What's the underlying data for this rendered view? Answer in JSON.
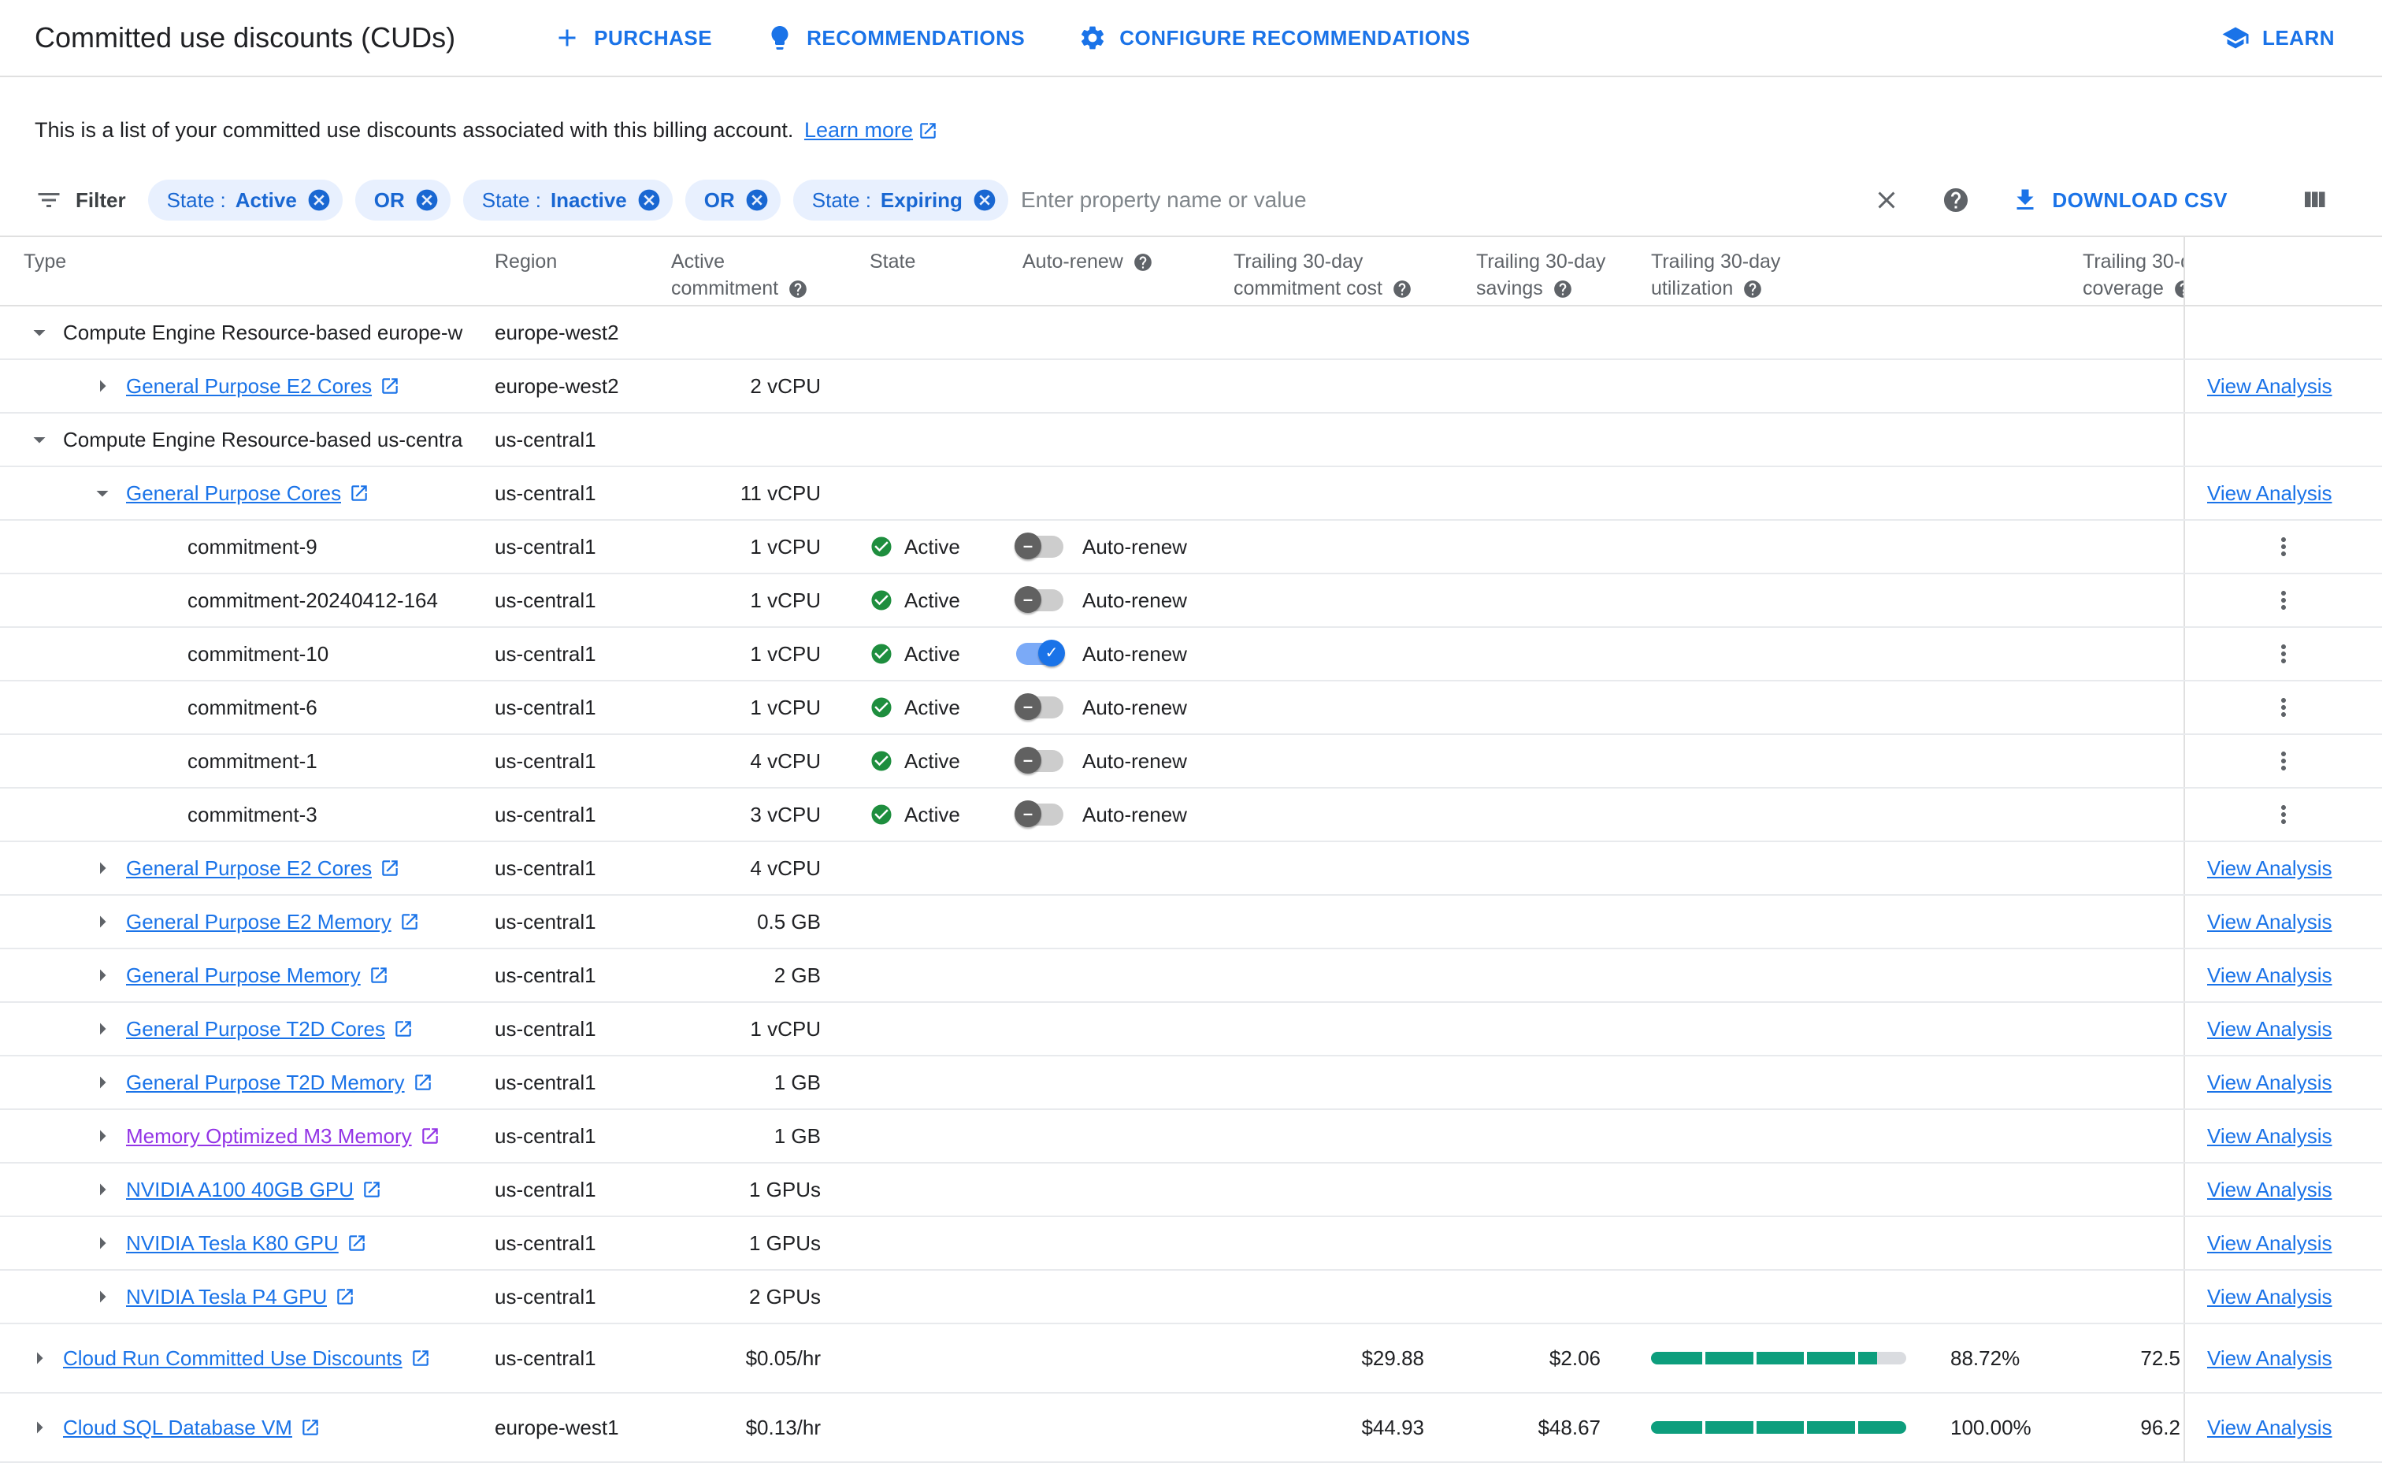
{
  "header": {
    "title": "Committed use discounts (CUDs)",
    "actions": [
      {
        "label": "PURCHASE",
        "icon": "plus-icon"
      },
      {
        "label": "RECOMMENDATIONS",
        "icon": "lightbulb-icon"
      },
      {
        "label": "CONFIGURE RECOMMENDATIONS",
        "icon": "gear-icon"
      }
    ],
    "learn": {
      "label": "LEARN",
      "icon": "learn-icon"
    }
  },
  "description": {
    "text": "This is a list of your committed use discounts associated with this billing account.",
    "link_label": "Learn more"
  },
  "filter_bar": {
    "label": "Filter",
    "chips": [
      {
        "field": "State :",
        "value": "Active"
      },
      {
        "value": "OR"
      },
      {
        "field": "State :",
        "value": "Inactive"
      },
      {
        "value": "OR"
      },
      {
        "field": "State :",
        "value": "Expiring"
      }
    ],
    "input_placeholder": "Enter property name or value",
    "download_label": "DOWNLOAD CSV",
    "icons": [
      "filter-icon",
      "close-icon",
      "help-icon",
      "download-icon",
      "columns-icon"
    ]
  },
  "table": {
    "columns": {
      "type": "Type",
      "region": "Region",
      "active_commitment_l1": "Active",
      "active_commitment_l2": "commitment",
      "state": "State",
      "auto_renew": "Auto-renew",
      "cost_l1": "Trailing 30-day",
      "cost_l2": "commitment cost",
      "savings_l1": "Trailing 30-day",
      "savings_l2": "savings",
      "utilization_l1": "Trailing 30-day",
      "utilization_l2": "utilization",
      "coverage_l1": "Trailing 30-d",
      "coverage_l2": "coverage"
    },
    "auto_renew_label": "Auto-renew",
    "view_analysis_label": "View Analysis",
    "rows": [
      {
        "level": 0,
        "caret": "down",
        "type": "Compute Engine Resource-based europe-w",
        "region": "europe-west2"
      },
      {
        "level": 1,
        "caret": "right",
        "type": "General Purpose E2 Cores",
        "link": true,
        "region": "europe-west2",
        "commitment": "2 vCPU",
        "action": "view"
      },
      {
        "level": 0,
        "caret": "down",
        "type": "Compute Engine Resource-based us-centra",
        "region": "us-central1"
      },
      {
        "level": 1,
        "caret": "down",
        "type": "General Purpose Cores",
        "link": true,
        "region": "us-central1",
        "commitment": "11 vCPU",
        "action": "view"
      },
      {
        "level": 2,
        "type": "commitment-9",
        "region": "us-central1",
        "commitment": "1 vCPU",
        "state": "Active",
        "auto_renew": false,
        "action": "kebab"
      },
      {
        "level": 2,
        "type": "commitment-20240412-164",
        "region": "us-central1",
        "commitment": "1 vCPU",
        "state": "Active",
        "auto_renew": false,
        "action": "kebab"
      },
      {
        "level": 2,
        "type": "commitment-10",
        "region": "us-central1",
        "commitment": "1 vCPU",
        "state": "Active",
        "auto_renew": true,
        "action": "kebab"
      },
      {
        "level": 2,
        "type": "commitment-6",
        "region": "us-central1",
        "commitment": "1 vCPU",
        "state": "Active",
        "auto_renew": false,
        "action": "kebab"
      },
      {
        "level": 2,
        "type": "commitment-1",
        "region": "us-central1",
        "commitment": "4 vCPU",
        "state": "Active",
        "auto_renew": false,
        "action": "kebab"
      },
      {
        "level": 2,
        "type": "commitment-3",
        "region": "us-central1",
        "commitment": "3 vCPU",
        "state": "Active",
        "auto_renew": false,
        "action": "kebab"
      },
      {
        "level": 1,
        "caret": "right",
        "type": "General Purpose E2 Cores",
        "link": true,
        "region": "us-central1",
        "commitment": "4 vCPU",
        "action": "view"
      },
      {
        "level": 1,
        "caret": "right",
        "type": "General Purpose E2 Memory",
        "link": true,
        "region": "us-central1",
        "commitment": "0.5 GB",
        "action": "view"
      },
      {
        "level": 1,
        "caret": "right",
        "type": "General Purpose Memory",
        "link": true,
        "region": "us-central1",
        "commitment": "2 GB",
        "action": "view"
      },
      {
        "level": 1,
        "caret": "right",
        "type": "General Purpose T2D Cores",
        "link": true,
        "region": "us-central1",
        "commitment": "1 vCPU",
        "action": "view"
      },
      {
        "level": 1,
        "caret": "right",
        "type": "General Purpose T2D Memory",
        "link": true,
        "region": "us-central1",
        "commitment": "1 GB",
        "action": "view"
      },
      {
        "level": 1,
        "caret": "right",
        "type": "Memory Optimized M3 Memory",
        "link": true,
        "visited": true,
        "region": "us-central1",
        "commitment": "1 GB",
        "action": "view"
      },
      {
        "level": 1,
        "caret": "right",
        "type": "NVIDIA A100 40GB GPU",
        "link": true,
        "region": "us-central1",
        "commitment": "1 GPUs",
        "action": "view"
      },
      {
        "level": 1,
        "caret": "right",
        "type": "NVIDIA Tesla K80 GPU",
        "link": true,
        "region": "us-central1",
        "commitment": "1 GPUs",
        "action": "view"
      },
      {
        "level": 1,
        "caret": "right",
        "type": "NVIDIA Tesla P4 GPU",
        "link": true,
        "region": "us-central1",
        "commitment": "2 GPUs",
        "action": "view"
      },
      {
        "level": 0,
        "caret": "right",
        "type": "Cloud Run Committed Use Discounts",
        "link": true,
        "region": "us-central1",
        "commitment": "$0.05/hr",
        "cost": "$29.88",
        "savings": "$2.06",
        "utilization": 88.72,
        "utilization_label": "88.72%",
        "coverage": "72.5",
        "action": "view",
        "tall": true
      },
      {
        "level": 0,
        "caret": "right",
        "type": "Cloud SQL Database VM",
        "link": true,
        "region": "europe-west1",
        "commitment": "$0.13/hr",
        "cost": "$44.93",
        "savings": "$48.67",
        "utilization": 100,
        "utilization_label": "100.00%",
        "coverage": "96.2",
        "action": "view",
        "tall": true
      }
    ]
  },
  "colors": {
    "accent": "#1a73e8",
    "link": "#1a73e8",
    "visited_link": "#9334e6",
    "chip_bg": "#e8f0fe",
    "chip_text": "#1967d2",
    "success": "#1e8e3e",
    "toggle_on_knob": "#1a73e8",
    "toggle_on_track": "#7baaf7",
    "toggle_off_knob": "#616161",
    "toggle_off_track": "#cdcdcd",
    "bar_fill": "#0d9e7d",
    "bar_track": "#dadce0",
    "text": "#202124",
    "muted_text": "#5f6368",
    "border": "#e0e0e0",
    "row_border": "#e8eaed"
  }
}
